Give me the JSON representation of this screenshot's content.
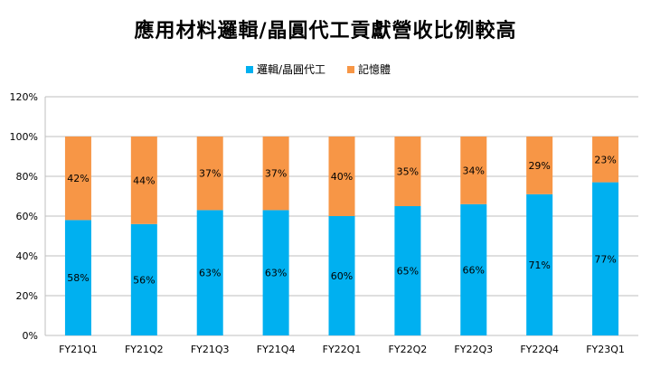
{
  "chart_data": {
    "type": "bar",
    "stacked": true,
    "title": "應用材料邏輯/晶圓代工貢獻營收比例較高",
    "categories": [
      "FY21Q1",
      "FY21Q2",
      "FY21Q3",
      "FY21Q4",
      "FY22Q1",
      "FY22Q2",
      "FY22Q3",
      "FY22Q4",
      "FY23Q1"
    ],
    "series": [
      {
        "name": "邏輯/晶圓代工",
        "values": [
          58,
          56,
          63,
          63,
          60,
          65,
          66,
          71,
          77
        ],
        "labels": [
          "58%",
          "56%",
          "63%",
          "63%",
          "60%",
          "65%",
          "66%",
          "71%",
          "77%"
        ],
        "color": "#00B0F0"
      },
      {
        "name": "記憶體",
        "values": [
          42,
          44,
          37,
          37,
          40,
          35,
          34,
          29,
          23
        ],
        "labels": [
          "42%",
          "44%",
          "37%",
          "37%",
          "40%",
          "35%",
          "34%",
          "29%",
          "23%"
        ],
        "color": "#F79646"
      }
    ],
    "ylim": [
      0,
      120
    ],
    "yticks": [
      0,
      20,
      40,
      60,
      80,
      100,
      120
    ],
    "ytick_labels": [
      "0%",
      "20%",
      "40%",
      "60%",
      "80%",
      "100%",
      "120%"
    ],
    "xlabel": "",
    "ylabel": "",
    "legend_position": "top",
    "grid": "horizontal"
  }
}
